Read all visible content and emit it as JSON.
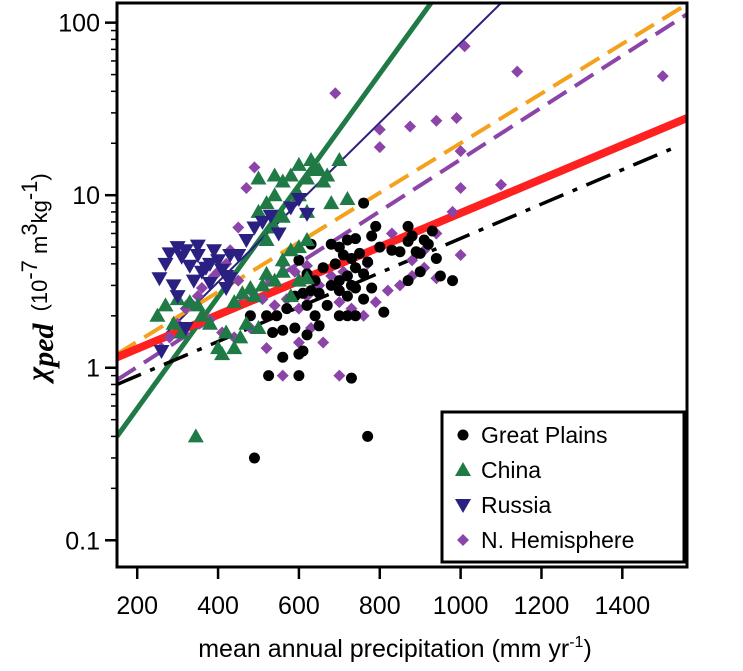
{
  "chart_data": {
    "type": "scatter",
    "xlabel": {
      "main": "mean annual precipitation (mm yr",
      "sup": "-1",
      "end": ")"
    },
    "ylabel": {
      "symbol": "χ",
      "sub": "ped",
      "units_open": "(10",
      "units_exp1": "-7",
      "units_mid": " m",
      "units_exp2": "3",
      "units_mid2": "kg",
      "units_exp3": "-1",
      "units_close": ")"
    },
    "xlim": [
      150,
      1560
    ],
    "ylim": [
      0.07,
      130
    ],
    "yscale": "log",
    "xticks": [
      200,
      400,
      600,
      800,
      1000,
      1200,
      1400
    ],
    "yticks": [
      0.1,
      1,
      10,
      100
    ],
    "ytick_labels": [
      "0.1",
      "1",
      "10",
      "100"
    ],
    "legend_position": "bottom-right",
    "series": [
      {
        "name": "Great Plains",
        "marker": "circle",
        "color": "#000000",
        "points": [
          [
            490,
            0.3
          ],
          [
            770,
            0.4
          ],
          [
            525,
            0.9
          ],
          [
            600,
            0.9
          ],
          [
            730,
            0.87
          ],
          [
            560,
            1.15
          ],
          [
            600,
            1.2
          ],
          [
            610,
            1.25
          ],
          [
            535,
            1.6
          ],
          [
            560,
            1.65
          ],
          [
            590,
            1.7
          ],
          [
            620,
            1.55
          ],
          [
            650,
            1.75
          ],
          [
            480,
            2.0
          ],
          [
            520,
            2.0
          ],
          [
            545,
            2.0
          ],
          [
            570,
            2.2
          ],
          [
            590,
            2.6
          ],
          [
            620,
            2.3
          ],
          [
            640,
            2.0
          ],
          [
            670,
            2.3
          ],
          [
            700,
            2.0
          ],
          [
            720,
            2.0
          ],
          [
            740,
            2.0
          ],
          [
            700,
            2.8
          ],
          [
            720,
            2.6
          ],
          [
            740,
            2.9
          ],
          [
            760,
            2.5
          ],
          [
            780,
            2.9
          ],
          [
            650,
            2.7
          ],
          [
            630,
            2.8
          ],
          [
            610,
            2.7
          ],
          [
            680,
            3.0
          ],
          [
            700,
            3.2
          ],
          [
            720,
            3.4
          ],
          [
            730,
            3.0
          ],
          [
            740,
            3.8
          ],
          [
            760,
            3.5
          ],
          [
            690,
            4.0
          ],
          [
            710,
            4.5
          ],
          [
            730,
            4.3
          ],
          [
            750,
            4.6
          ],
          [
            770,
            4.1
          ],
          [
            660,
            3.8
          ],
          [
            640,
            3.2
          ],
          [
            620,
            3.5
          ],
          [
            600,
            4.2
          ],
          [
            630,
            5.2
          ],
          [
            680,
            5.2
          ],
          [
            700,
            5.0
          ],
          [
            720,
            5.5
          ],
          [
            740,
            5.6
          ],
          [
            800,
            5.0
          ],
          [
            830,
            4.8
          ],
          [
            850,
            4.7
          ],
          [
            870,
            5.4
          ],
          [
            880,
            5.8
          ],
          [
            890,
            4.7
          ],
          [
            900,
            4.6
          ],
          [
            910,
            5.5
          ],
          [
            920,
            5.2
          ],
          [
            930,
            6.2
          ],
          [
            870,
            3.2
          ],
          [
            900,
            3.6
          ],
          [
            940,
            4.3
          ],
          [
            950,
            3.4
          ],
          [
            980,
            3.2
          ],
          [
            810,
            2.1
          ],
          [
            780,
            5.8
          ],
          [
            790,
            6.6
          ],
          [
            870,
            6.6
          ],
          [
            760,
            9.0
          ]
        ]
      },
      {
        "name": "China",
        "marker": "triangle-up",
        "color": "#1f7a46",
        "points": [
          [
            345,
            0.4
          ],
          [
            250,
            2.0
          ],
          [
            270,
            2.3
          ],
          [
            290,
            1.8
          ],
          [
            300,
            2.5
          ],
          [
            310,
            1.6
          ],
          [
            330,
            2.4
          ],
          [
            350,
            2.3
          ],
          [
            360,
            2.0
          ],
          [
            380,
            1.8
          ],
          [
            400,
            1.3
          ],
          [
            410,
            1.2
          ],
          [
            420,
            1.6
          ],
          [
            440,
            1.3
          ],
          [
            455,
            1.5
          ],
          [
            470,
            1.8
          ],
          [
            490,
            2.6
          ],
          [
            500,
            1.7
          ],
          [
            440,
            2.4
          ],
          [
            460,
            2.7
          ],
          [
            480,
            2.9
          ],
          [
            510,
            3.0
          ],
          [
            520,
            3.5
          ],
          [
            540,
            3.2
          ],
          [
            560,
            3.6
          ],
          [
            580,
            2.6
          ],
          [
            600,
            3.2
          ],
          [
            620,
            3.3
          ],
          [
            560,
            4.2
          ],
          [
            580,
            4.8
          ],
          [
            600,
            5.0
          ],
          [
            620,
            5.5
          ],
          [
            500,
            8.0
          ],
          [
            520,
            9.0
          ],
          [
            540,
            10.0
          ],
          [
            560,
            12.0
          ],
          [
            580,
            13.0
          ],
          [
            600,
            10.0
          ],
          [
            620,
            12.5
          ],
          [
            640,
            14.0
          ],
          [
            660,
            12.0
          ],
          [
            680,
            9.0
          ],
          [
            700,
            16.0
          ],
          [
            720,
            9.5
          ],
          [
            600,
            15.0
          ],
          [
            630,
            16.0
          ],
          [
            650,
            14.0
          ],
          [
            670,
            13.0
          ],
          [
            540,
            13.0
          ],
          [
            500,
            12.5
          ],
          [
            560,
            7.5
          ],
          [
            620,
            8.0
          ],
          [
            520,
            5.5
          ],
          [
            540,
            6.5
          ]
        ]
      },
      {
        "name": "Russia",
        "marker": "triangle-down",
        "color": "#2a2082",
        "points": [
          [
            255,
            3.3
          ],
          [
            270,
            4.0
          ],
          [
            280,
            4.6
          ],
          [
            290,
            3.0
          ],
          [
            300,
            5.0
          ],
          [
            310,
            4.4
          ],
          [
            320,
            4.8
          ],
          [
            330,
            3.9
          ],
          [
            340,
            3.2
          ],
          [
            350,
            4.5
          ],
          [
            360,
            3.6
          ],
          [
            370,
            3.8
          ],
          [
            380,
            4.0
          ],
          [
            390,
            4.8
          ],
          [
            400,
            4.2
          ],
          [
            410,
            3.7
          ],
          [
            420,
            3.4
          ],
          [
            430,
            3.3
          ],
          [
            450,
            4.5
          ],
          [
            470,
            5.5
          ],
          [
            490,
            6.5
          ],
          [
            510,
            7.0
          ],
          [
            530,
            7.6
          ],
          [
            550,
            6.0
          ],
          [
            580,
            8.5
          ],
          [
            600,
            9.5
          ],
          [
            620,
            7.8
          ],
          [
            420,
            2.9
          ],
          [
            300,
            2.6
          ],
          [
            320,
            1.7
          ],
          [
            260,
            1.25
          ],
          [
            350,
            5.1
          ],
          [
            380,
            3.1
          ],
          [
            430,
            4.5
          ]
        ]
      },
      {
        "name": "N. Hemisphere",
        "marker": "diamond",
        "color": "#8b45a8",
        "points": [
          [
            560,
            0.9
          ],
          [
            700,
            0.9
          ],
          [
            690,
            39.0
          ],
          [
            800,
            24.0
          ],
          [
            875,
            25.0
          ],
          [
            940,
            27.0
          ],
          [
            990,
            28.0
          ],
          [
            1000,
            18.0
          ],
          [
            1000,
            11.0
          ],
          [
            1010,
            73.0
          ],
          [
            1140,
            52.0
          ],
          [
            1500,
            49.0
          ],
          [
            980,
            8.0
          ],
          [
            940,
            6.0
          ],
          [
            910,
            4.8
          ],
          [
            880,
            4.2
          ],
          [
            830,
            6.0
          ],
          [
            800,
            19.0
          ],
          [
            1100,
            11.5
          ],
          [
            490,
            14.5
          ],
          [
            470,
            11.0
          ],
          [
            450,
            6.5
          ],
          [
            430,
            4.8
          ],
          [
            400,
            3.6
          ],
          [
            380,
            3.2
          ],
          [
            350,
            2.6
          ],
          [
            320,
            2.2
          ],
          [
            300,
            1.8
          ],
          [
            280,
            1.5
          ],
          [
            260,
            1.3
          ],
          [
            330,
            2.4
          ],
          [
            360,
            2.9
          ],
          [
            390,
            3.4
          ],
          [
            420,
            4.0
          ],
          [
            450,
            3.2
          ],
          [
            480,
            2.8
          ],
          [
            510,
            2.5
          ],
          [
            540,
            2.3
          ],
          [
            570,
            2.5
          ],
          [
            600,
            2.2
          ],
          [
            620,
            2.6
          ],
          [
            650,
            3.0
          ],
          [
            680,
            3.4
          ],
          [
            710,
            3.6
          ],
          [
            740,
            3.8
          ],
          [
            770,
            4.0
          ],
          [
            700,
            2.4
          ],
          [
            730,
            2.2
          ],
          [
            760,
            2.0
          ],
          [
            790,
            2.4
          ],
          [
            820,
            2.8
          ],
          [
            850,
            3.0
          ],
          [
            880,
            3.4
          ],
          [
            910,
            3.8
          ],
          [
            940,
            3.3
          ],
          [
            530,
            3.2
          ],
          [
            560,
            4.0
          ],
          [
            590,
            3.6
          ],
          [
            620,
            3.9
          ],
          [
            520,
            1.3
          ],
          [
            480,
            1.7
          ],
          [
            440,
            1.5
          ],
          [
            410,
            1.6
          ],
          [
            380,
            1.9
          ],
          [
            600,
            1.4
          ],
          [
            630,
            1.7
          ],
          [
            660,
            1.4
          ],
          [
            1000,
            4.5
          ]
        ]
      }
    ],
    "lines": [
      {
        "style": "solid",
        "color": "#1f7a46",
        "width": 5,
        "x1": 150,
        "y1": 0.4,
        "x2": 1560,
        "y2": 14500
      },
      {
        "style": "solid",
        "color": "#2a2082",
        "width": 2,
        "x1": 255,
        "y1": 1.45,
        "x2": 1560,
        "y2": 1500
      },
      {
        "style": "dashed",
        "color": "#f4a11d",
        "width": 4,
        "x1": 150,
        "y1": 1.2,
        "x2": 1560,
        "y2": 128
      },
      {
        "style": "dashed",
        "color": "#8b45a8",
        "width": 4,
        "x1": 150,
        "y1": 0.85,
        "x2": 1560,
        "y2": 112
      },
      {
        "style": "solid",
        "color": "#ff2020",
        "width": 8,
        "x1": 150,
        "y1": 1.15,
        "x2": 1560,
        "y2": 28
      },
      {
        "style": "dashdot",
        "color": "#000000",
        "width": 3.5,
        "x1": 150,
        "y1": 0.8,
        "x2": 1520,
        "y2": 18.5
      }
    ]
  }
}
